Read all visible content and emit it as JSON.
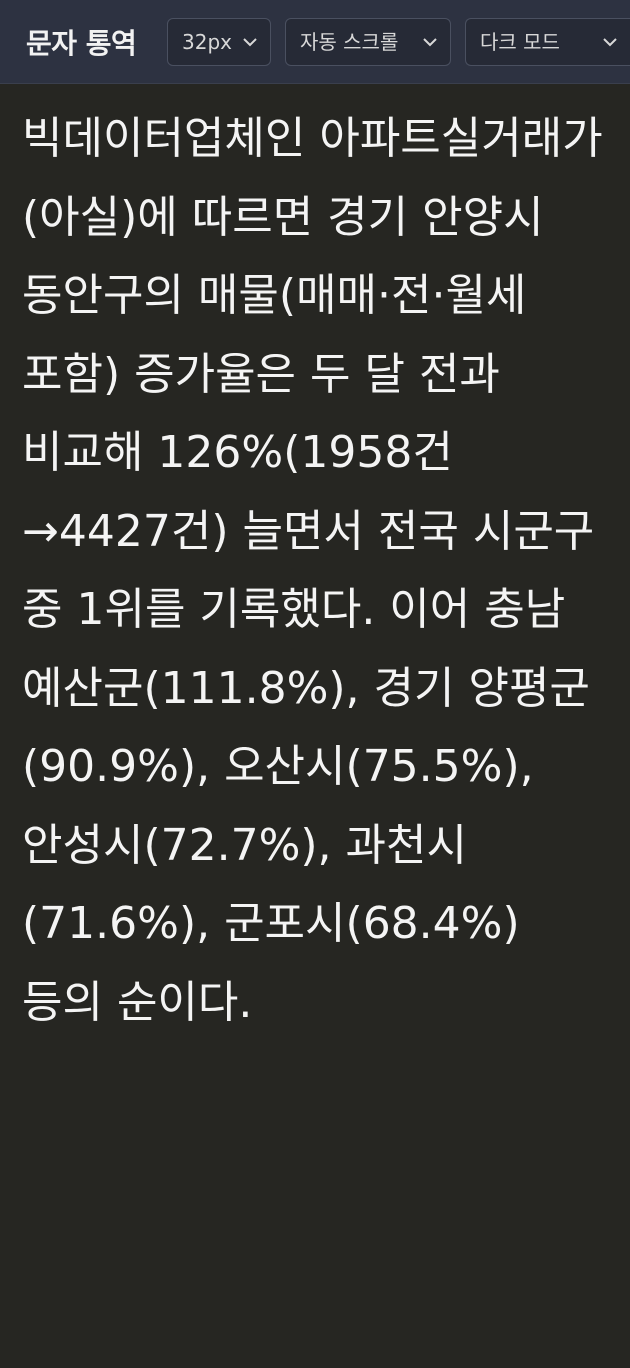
{
  "header": {
    "title": "문자 통역",
    "font_size": {
      "selected": "32px"
    },
    "scroll_mode": {
      "selected": "자동 스크롤"
    },
    "theme": {
      "selected": "다크 모드"
    }
  },
  "transcript": {
    "text": "빅데이터업체인 아파트실거래가(아실)에 따르면 경기 안양시 동안구의 매물(매매·전·월세 포함) 증가율은 두 달 전과 비교해 126%(1958건→4427건) 늘면서 전국 시군구 중 1위를 기록했다. 이어 충남 예산군(111.8%), 경기 양평군(90.9%), 오산시(75.5%), 안성시(72.7%), 과천시(71.6%), 군포시(68.4%) 등의 순이다."
  },
  "colors": {
    "header_bg": "#2d3241",
    "page_bg": "#262622",
    "text": "#f4f4f4"
  }
}
